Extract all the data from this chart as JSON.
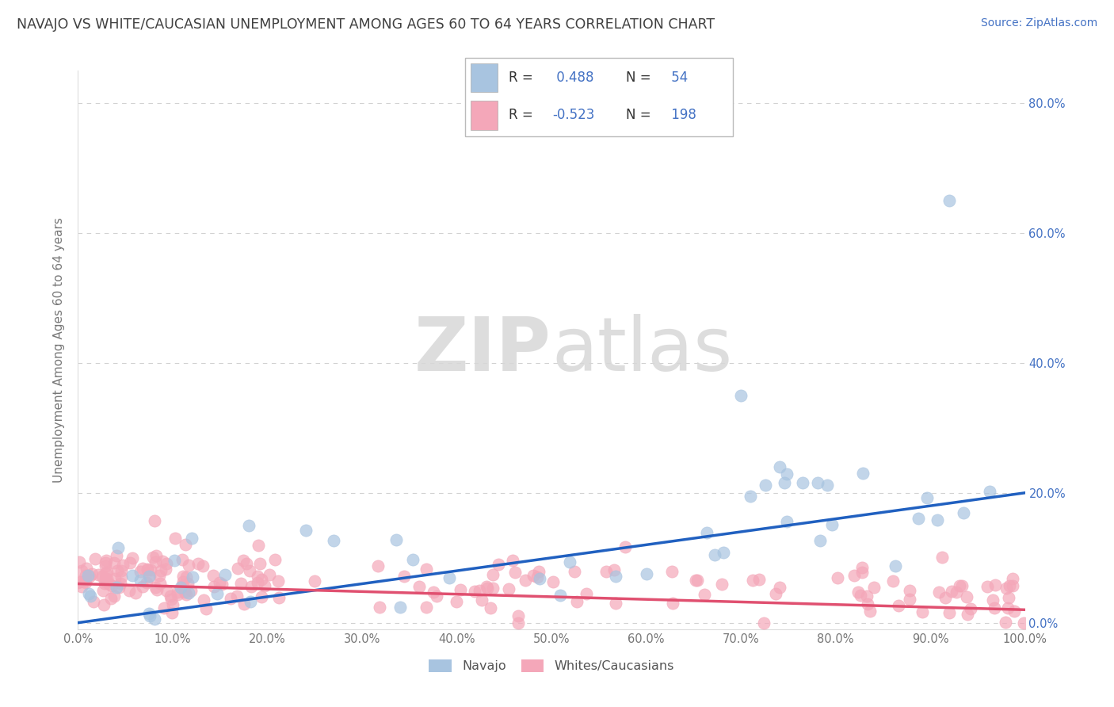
{
  "title": "NAVAJO VS WHITE/CAUCASIAN UNEMPLOYMENT AMONG AGES 60 TO 64 YEARS CORRELATION CHART",
  "source": "Source: ZipAtlas.com",
  "ylabel": "Unemployment Among Ages 60 to 64 years",
  "xlim": [
    0,
    1.0
  ],
  "ylim": [
    -0.01,
    0.85
  ],
  "navajo_R": 0.488,
  "navajo_N": 54,
  "white_R": -0.523,
  "white_N": 198,
  "navajo_color": "#a8c4e0",
  "white_color": "#f4a7b9",
  "navajo_line_color": "#2060c0",
  "white_line_color": "#e05070",
  "watermark_zip": "ZIP",
  "watermark_atlas": "atlas",
  "watermark_color": "#d8d8d8",
  "background_color": "#ffffff",
  "grid_color": "#cccccc",
  "title_color": "#404040",
  "axis_color": "#777777",
  "right_axis_color": "#4472c4",
  "legend_label_color": "#333333",
  "legend_value_color": "#4472c4",
  "source_color": "#4472c4"
}
